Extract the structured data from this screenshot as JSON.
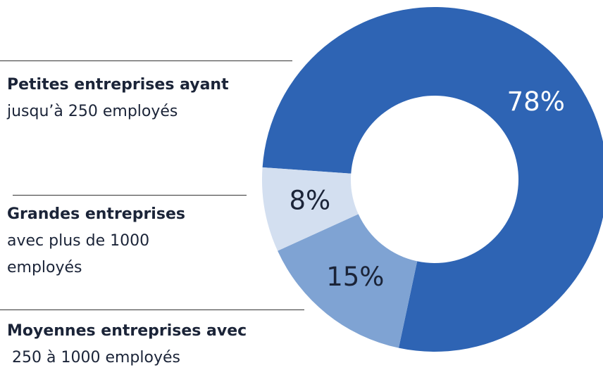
{
  "chart_data": {
    "type": "donut",
    "categories": [
      "Petites entreprises ayant",
      "Moyennes entreprises avec",
      "Grandes entreprises"
    ],
    "descriptions": [
      "jusqu’à 250 employés",
      " 250 à 1000 employés",
      "avec plus de 1000 employés"
    ],
    "values": [
      78,
      15,
      8
    ],
    "value_labels": [
      "78%",
      "15%",
      "8%"
    ],
    "colors": [
      "#2e64b4",
      "#7fa3d3",
      "#d3dff0"
    ],
    "label_colors": [
      "#ffffff",
      "#1b2438",
      "#1b2438"
    ]
  }
}
